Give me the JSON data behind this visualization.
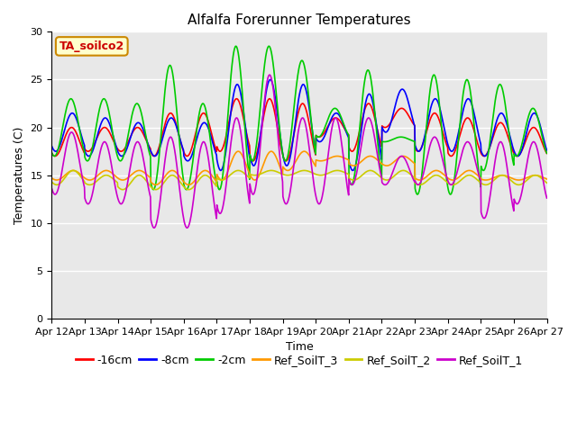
{
  "title": "Alfalfa Forerunner Temperatures",
  "xlabel": "Time",
  "ylabel": "Temperatures (C)",
  "ylim": [
    0,
    30
  ],
  "yticks": [
    0,
    5,
    10,
    15,
    20,
    25,
    30
  ],
  "xtick_labels": [
    "Apr 12",
    "Apr 13",
    "Apr 14",
    "Apr 15",
    "Apr 16",
    "Apr 17",
    "Apr 18",
    "Apr 19",
    "Apr 20",
    "Apr 21",
    "Apr 22",
    "Apr 23",
    "Apr 24",
    "Apr 25",
    "Apr 26",
    "Apr 27"
  ],
  "legend_label": "TA_soilco2",
  "series": {
    "-16cm": {
      "color": "#ff0000"
    },
    "-8cm": {
      "color": "#0000ff"
    },
    "-2cm": {
      "color": "#00cc00"
    },
    "Ref_SoilT_3": {
      "color": "#ff9900"
    },
    "Ref_SoilT_2": {
      "color": "#cccc00"
    },
    "Ref_SoilT_1": {
      "color": "#cc00cc"
    }
  },
  "background_color": "#e8e8e8",
  "title_fontsize": 11,
  "axis_fontsize": 9,
  "tick_fontsize": 8,
  "legend_fontsize": 9
}
